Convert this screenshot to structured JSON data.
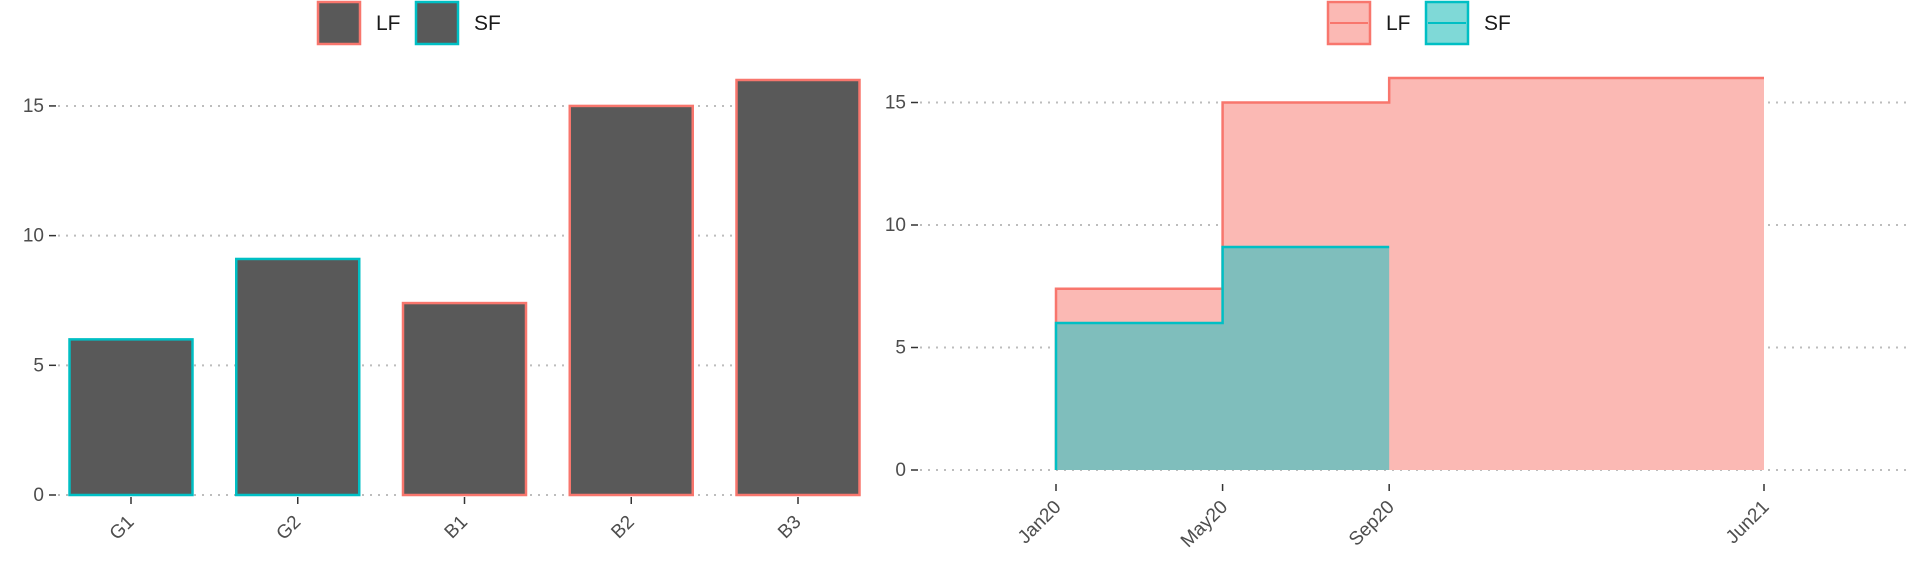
{
  "chart_data": [
    {
      "type": "bar",
      "categories": [
        "G1",
        "G2",
        "B1",
        "B2",
        "B3"
      ],
      "values": [
        6.0,
        9.1,
        7.4,
        15.0,
        16.0
      ],
      "groups": [
        "SF",
        "SF",
        "LF",
        "LF",
        "LF"
      ],
      "ylim": [
        0,
        16
      ],
      "yticks": [
        0,
        5,
        10,
        15
      ],
      "ytick_labels": [
        "0",
        "5",
        "10",
        "15"
      ],
      "fill_color": "#595959",
      "grid": "horizontal-dotted",
      "legend": {
        "position": "top",
        "entries": [
          "LF",
          "SF"
        ]
      },
      "title": "",
      "xlabel": "",
      "ylabel": ""
    },
    {
      "type": "area",
      "step": true,
      "x_range": [
        "2020-01",
        "2021-06"
      ],
      "xticks": [
        "2020-01",
        "2020-05",
        "2020-09",
        "2021-06"
      ],
      "xtick_labels": [
        "Jan20",
        "May20",
        "Sep20",
        "Jun21"
      ],
      "ylim": [
        0,
        16
      ],
      "yticks": [
        0,
        5,
        10,
        15
      ],
      "ytick_labels": [
        "0",
        "5",
        "10",
        "15"
      ],
      "series": [
        {
          "name": "LF",
          "steps": [
            {
              "x": "2020-01",
              "y": 7.4
            },
            {
              "x": "2020-05",
              "y": 15.0
            },
            {
              "x": "2020-09",
              "y": 16.0
            }
          ],
          "end": "2021-06"
        },
        {
          "name": "SF",
          "steps": [
            {
              "x": "2020-01",
              "y": 6.0
            },
            {
              "x": "2020-05",
              "y": 9.1
            }
          ],
          "end": "2020-09"
        }
      ],
      "grid": "horizontal-dotted",
      "legend": {
        "position": "top",
        "entries": [
          "LF",
          "SF"
        ]
      },
      "title": "",
      "xlabel": "",
      "ylabel": ""
    }
  ],
  "colors": {
    "LF": "#F8766D",
    "SF": "#00BFC4",
    "LF_fill": "#FBB9B4",
    "SF_fill": "#7FBEBC",
    "SF_legend_fill": "#7FD9D7",
    "bar_fill": "#595959"
  }
}
